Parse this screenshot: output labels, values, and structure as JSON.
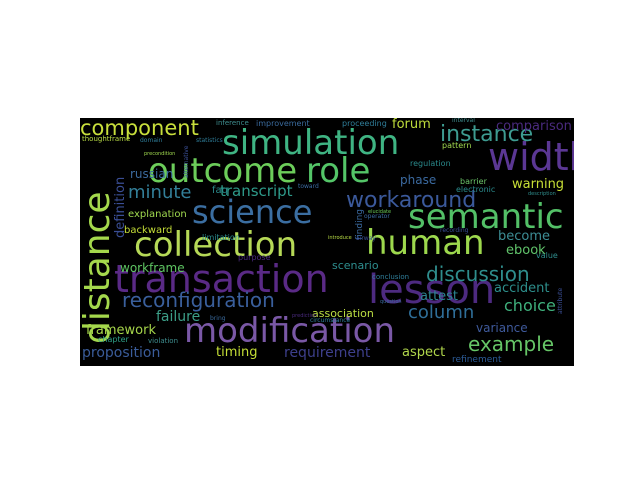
{
  "wordcloud": {
    "background": "#000000",
    "page_background": "#ffffff",
    "words": [
      {
        "text": "modification",
        "color": "#7a58a6"
      },
      {
        "text": "transaction",
        "color": "#5a2a86"
      },
      {
        "text": "collection",
        "color": "#b6d957"
      },
      {
        "text": "simulation",
        "color": "#3fb483"
      },
      {
        "text": "semantic",
        "color": "#53c067"
      },
      {
        "text": "science",
        "color": "#3b6ea1"
      },
      {
        "text": "human",
        "color": "#9dd84d"
      },
      {
        "text": "lesson",
        "color": "#4d2a80"
      },
      {
        "text": "outcome",
        "color": "#6ccd5a"
      },
      {
        "text": "role",
        "color": "#54c568"
      },
      {
        "text": "width",
        "color": "#5b3794"
      },
      {
        "text": "distance",
        "color": "#a4d84c"
      },
      {
        "text": "component",
        "color": "#c8df3c"
      },
      {
        "text": "instance",
        "color": "#3e9c91"
      },
      {
        "text": "workaround",
        "color": "#3b599b"
      },
      {
        "text": "reconfiguration",
        "color": "#3a5f9c"
      },
      {
        "text": "discussion",
        "color": "#2f8e8d"
      },
      {
        "text": "example",
        "color": "#66c667"
      },
      {
        "text": "column",
        "color": "#2f6e98"
      },
      {
        "text": "minute",
        "color": "#337f99"
      },
      {
        "text": "transcript",
        "color": "#2e9a8a"
      },
      {
        "text": "framework",
        "color": "#a6d54a"
      },
      {
        "text": "proposition",
        "color": "#3a5c9a"
      },
      {
        "text": "failure",
        "color": "#3c9f88"
      },
      {
        "text": "timing",
        "color": "#c5df36"
      },
      {
        "text": "requirement",
        "color": "#3d3f8c"
      },
      {
        "text": "aspect",
        "color": "#b0d64b"
      },
      {
        "text": "association",
        "color": "#bddf43"
      },
      {
        "text": "attest",
        "color": "#2d8491"
      },
      {
        "text": "accident",
        "color": "#2d8e8b"
      },
      {
        "text": "choice",
        "color": "#3fb07c"
      },
      {
        "text": "become",
        "color": "#3d8e96"
      },
      {
        "text": "ebook",
        "color": "#61c46b"
      },
      {
        "text": "variance",
        "color": "#3f5a9c"
      },
      {
        "text": "workframe",
        "color": "#5ec562"
      },
      {
        "text": "scenario",
        "color": "#2e8e8f"
      },
      {
        "text": "warning",
        "color": "#c7df36"
      },
      {
        "text": "forum",
        "color": "#bfdd3c"
      },
      {
        "text": "russian",
        "color": "#3b6a9e"
      },
      {
        "text": "definition",
        "color": "#3a4e95"
      },
      {
        "text": "explanation",
        "color": "#a0d94f"
      },
      {
        "text": "backward",
        "color": "#c6df38"
      },
      {
        "text": "faq",
        "color": "#2a8a8c"
      },
      {
        "text": "phase",
        "color": "#3b6aa0"
      },
      {
        "text": "comparison",
        "color": "#4a2a7e"
      },
      {
        "text": "chapter",
        "color": "#2f9f88"
      },
      {
        "text": "refinement",
        "color": "#2c5b97"
      },
      {
        "text": "regulation",
        "color": "#2a8a8c"
      },
      {
        "text": "finding",
        "color": "#3b6aa0"
      },
      {
        "text": "electronic",
        "color": "#2a8a8c"
      },
      {
        "text": "pattern",
        "color": "#a0d94f"
      },
      {
        "text": "barrier",
        "color": "#6cc66a"
      },
      {
        "text": "improvement",
        "color": "#3a6a9c"
      },
      {
        "text": "inference",
        "color": "#3f8e8f"
      },
      {
        "text": "proceeding",
        "color": "#2f7e9a"
      },
      {
        "text": "interval",
        "color": "#3f8e8f"
      },
      {
        "text": "thoughtframe",
        "color": "#b8dc45"
      },
      {
        "text": "domain",
        "color": "#2f7e9a"
      },
      {
        "text": "toward",
        "color": "#3b6aa0"
      },
      {
        "text": "limitation",
        "color": "#2a8a8c"
      },
      {
        "text": "purpose",
        "color": "#4a2a7e"
      },
      {
        "text": "conclusion",
        "color": "#2f7e9a"
      },
      {
        "text": "recording",
        "color": "#3a4e95"
      },
      {
        "text": "value",
        "color": "#2f8e8d"
      },
      {
        "text": "bring",
        "color": "#3a6a9c"
      },
      {
        "text": "violation",
        "color": "#3f8e8f"
      },
      {
        "text": "introduce",
        "color": "#b8dc45"
      },
      {
        "text": "airway",
        "color": "#3a4e95"
      },
      {
        "text": "circumstance",
        "color": "#2f7e9a"
      },
      {
        "text": "operator",
        "color": "#3b6aa0"
      },
      {
        "text": "precondition",
        "color": "#a0d94f"
      },
      {
        "text": "alternative",
        "color": "#3a4e95"
      },
      {
        "text": "elucidate",
        "color": "#6ccd5a"
      },
      {
        "text": "statistics",
        "color": "#2f7e9a"
      },
      {
        "text": "prediction",
        "color": "#4a2a7e"
      },
      {
        "text": "description",
        "color": "#2f8e8d"
      },
      {
        "text": "attribute",
        "color": "#3a4e95"
      },
      {
        "text": "question",
        "color": "#3a6a9c"
      }
    ]
  }
}
